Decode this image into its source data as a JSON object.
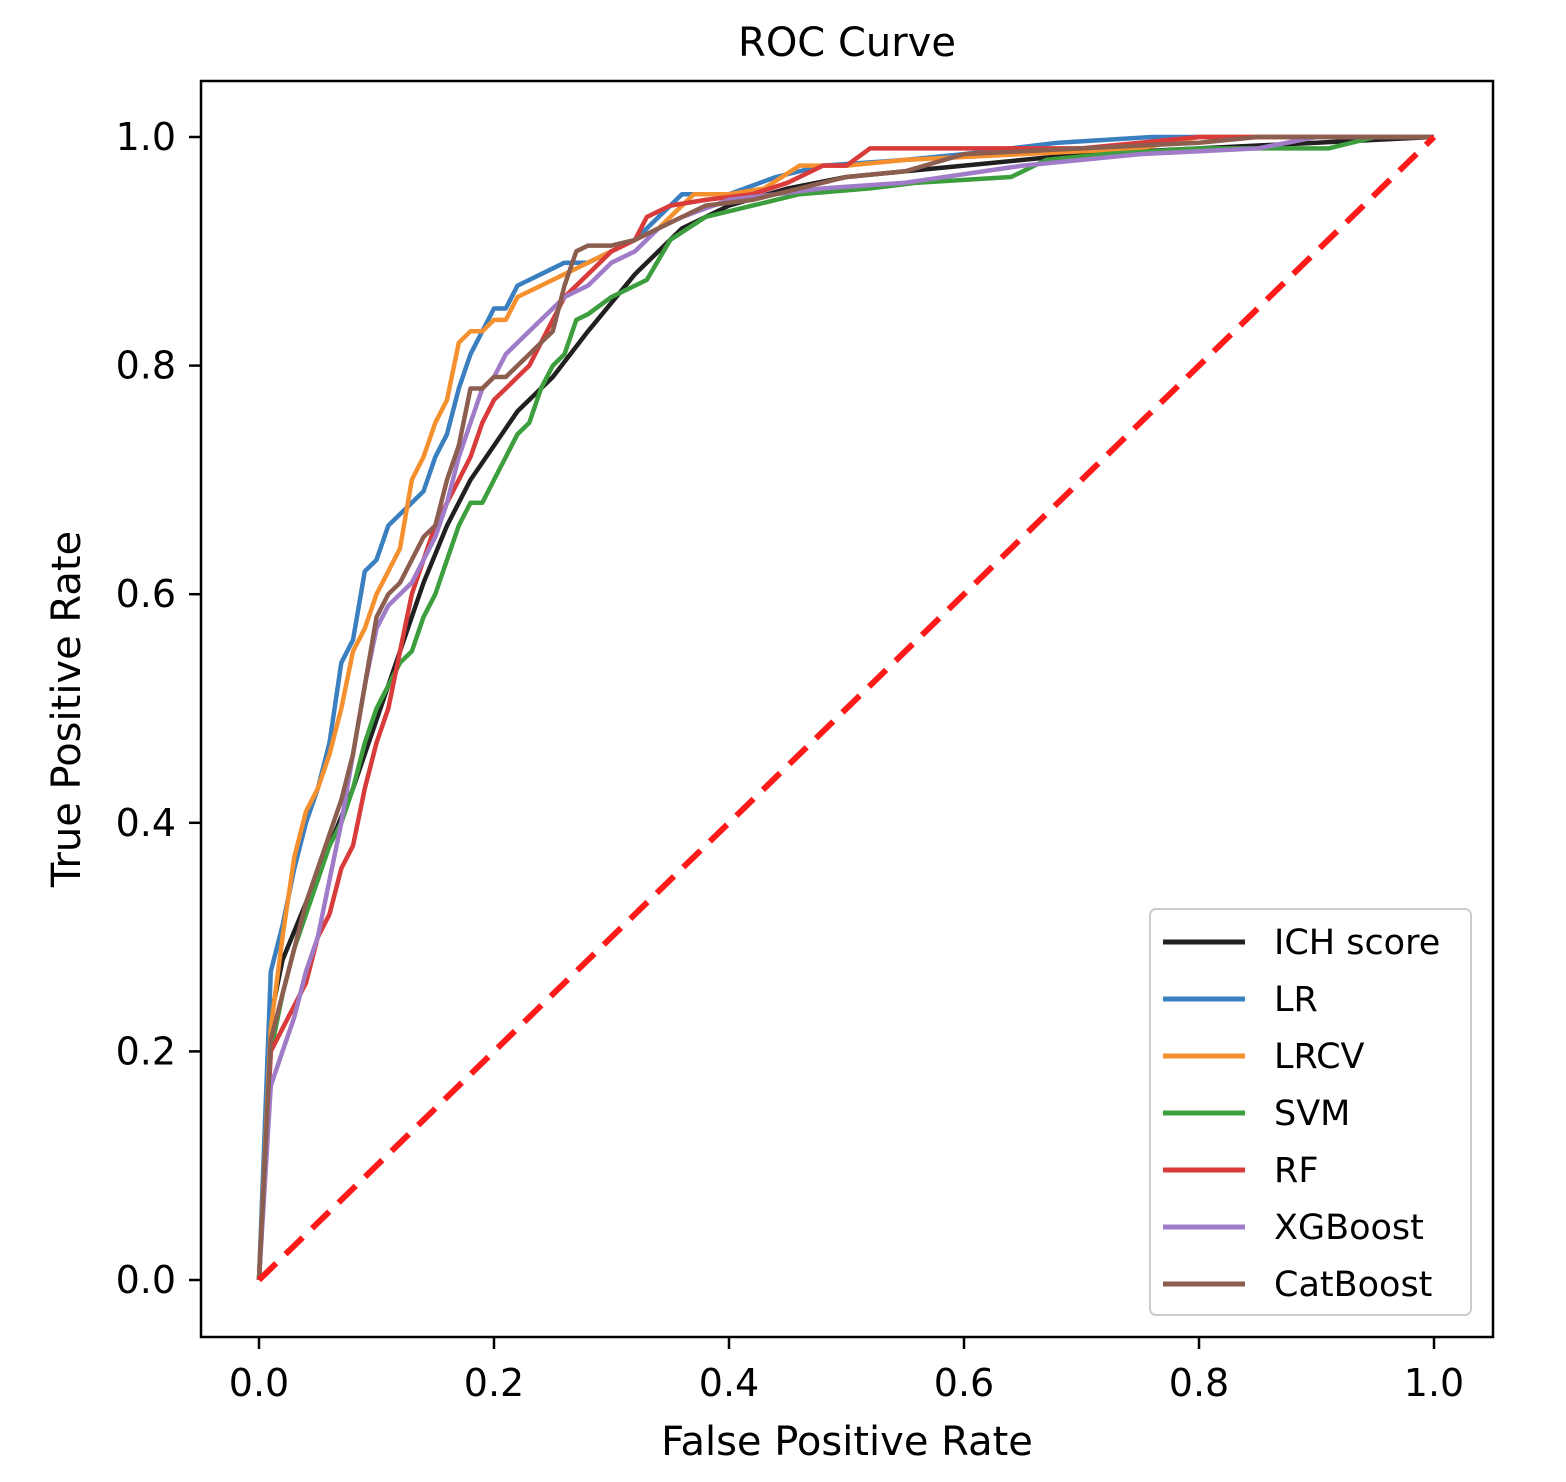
{
  "chart_data": {
    "type": "line",
    "title": "ROC Curve",
    "xlabel": "False Positive Rate",
    "ylabel": "True Positive Rate",
    "xlim": [
      -0.05,
      1.05
    ],
    "ylim": [
      -0.05,
      1.05
    ],
    "xticks": [
      "0.0",
      "0.2",
      "0.4",
      "0.6",
      "0.8",
      "1.0"
    ],
    "yticks": [
      "0.0",
      "0.2",
      "0.4",
      "0.6",
      "0.8",
      "1.0"
    ],
    "grid": false,
    "legend_position": "lower-right",
    "series": [
      {
        "name": "ICH score",
        "color": "#202020",
        "points": [
          [
            0,
            0
          ],
          [
            0.01,
            0.23
          ],
          [
            0.02,
            0.28
          ],
          [
            0.04,
            0.33
          ],
          [
            0.06,
            0.38
          ],
          [
            0.08,
            0.43
          ],
          [
            0.1,
            0.49
          ],
          [
            0.12,
            0.55
          ],
          [
            0.14,
            0.61
          ],
          [
            0.16,
            0.66
          ],
          [
            0.18,
            0.7
          ],
          [
            0.2,
            0.73
          ],
          [
            0.22,
            0.76
          ],
          [
            0.25,
            0.79
          ],
          [
            0.28,
            0.83
          ],
          [
            0.32,
            0.88
          ],
          [
            0.36,
            0.92
          ],
          [
            0.4,
            0.94
          ],
          [
            0.45,
            0.955
          ],
          [
            0.5,
            0.965
          ],
          [
            0.55,
            0.97
          ],
          [
            0.6,
            0.975
          ],
          [
            0.65,
            0.98
          ],
          [
            0.7,
            0.985
          ],
          [
            0.8,
            0.99
          ],
          [
            0.9,
            0.995
          ],
          [
            1.0,
            1.0
          ]
        ]
      },
      {
        "name": "LR",
        "color": "#3a7fbf",
        "points": [
          [
            0,
            0
          ],
          [
            0.01,
            0.27
          ],
          [
            0.02,
            0.31
          ],
          [
            0.03,
            0.36
          ],
          [
            0.04,
            0.4
          ],
          [
            0.05,
            0.43
          ],
          [
            0.06,
            0.47
          ],
          [
            0.07,
            0.54
          ],
          [
            0.08,
            0.56
          ],
          [
            0.09,
            0.62
          ],
          [
            0.1,
            0.63
          ],
          [
            0.11,
            0.66
          ],
          [
            0.12,
            0.67
          ],
          [
            0.13,
            0.68
          ],
          [
            0.14,
            0.69
          ],
          [
            0.15,
            0.72
          ],
          [
            0.16,
            0.74
          ],
          [
            0.17,
            0.78
          ],
          [
            0.18,
            0.81
          ],
          [
            0.19,
            0.83
          ],
          [
            0.2,
            0.85
          ],
          [
            0.21,
            0.85
          ],
          [
            0.22,
            0.87
          ],
          [
            0.24,
            0.88
          ],
          [
            0.26,
            0.89
          ],
          [
            0.28,
            0.89
          ],
          [
            0.3,
            0.9
          ],
          [
            0.32,
            0.91
          ],
          [
            0.34,
            0.93
          ],
          [
            0.36,
            0.95
          ],
          [
            0.4,
            0.95
          ],
          [
            0.44,
            0.965
          ],
          [
            0.48,
            0.975
          ],
          [
            0.55,
            0.98
          ],
          [
            0.6,
            0.985
          ],
          [
            0.68,
            0.995
          ],
          [
            0.76,
            1.0
          ],
          [
            1.0,
            1.0
          ]
        ]
      },
      {
        "name": "LRCV",
        "color": "#f5902f",
        "points": [
          [
            0,
            0
          ],
          [
            0.01,
            0.22
          ],
          [
            0.02,
            0.3
          ],
          [
            0.03,
            0.37
          ],
          [
            0.04,
            0.41
          ],
          [
            0.05,
            0.43
          ],
          [
            0.06,
            0.46
          ],
          [
            0.07,
            0.5
          ],
          [
            0.08,
            0.55
          ],
          [
            0.09,
            0.57
          ],
          [
            0.1,
            0.6
          ],
          [
            0.11,
            0.62
          ],
          [
            0.12,
            0.64
          ],
          [
            0.13,
            0.7
          ],
          [
            0.14,
            0.72
          ],
          [
            0.15,
            0.75
          ],
          [
            0.16,
            0.77
          ],
          [
            0.17,
            0.82
          ],
          [
            0.18,
            0.83
          ],
          [
            0.19,
            0.83
          ],
          [
            0.2,
            0.84
          ],
          [
            0.21,
            0.84
          ],
          [
            0.22,
            0.86
          ],
          [
            0.24,
            0.87
          ],
          [
            0.26,
            0.88
          ],
          [
            0.28,
            0.89
          ],
          [
            0.3,
            0.9
          ],
          [
            0.32,
            0.91
          ],
          [
            0.34,
            0.92
          ],
          [
            0.37,
            0.95
          ],
          [
            0.4,
            0.95
          ],
          [
            0.43,
            0.955
          ],
          [
            0.46,
            0.975
          ],
          [
            0.5,
            0.975
          ],
          [
            0.55,
            0.98
          ],
          [
            0.65,
            0.985
          ],
          [
            0.75,
            0.99
          ],
          [
            0.8,
            1.0
          ],
          [
            1.0,
            1.0
          ]
        ]
      },
      {
        "name": "SVM",
        "color": "#3d9e3d",
        "points": [
          [
            0,
            0
          ],
          [
            0.01,
            0.2
          ],
          [
            0.02,
            0.25
          ],
          [
            0.03,
            0.29
          ],
          [
            0.04,
            0.32
          ],
          [
            0.05,
            0.35
          ],
          [
            0.06,
            0.38
          ],
          [
            0.07,
            0.4
          ],
          [
            0.08,
            0.43
          ],
          [
            0.09,
            0.47
          ],
          [
            0.1,
            0.5
          ],
          [
            0.11,
            0.52
          ],
          [
            0.12,
            0.54
          ],
          [
            0.13,
            0.55
          ],
          [
            0.14,
            0.58
          ],
          [
            0.15,
            0.6
          ],
          [
            0.16,
            0.63
          ],
          [
            0.17,
            0.66
          ],
          [
            0.18,
            0.68
          ],
          [
            0.19,
            0.68
          ],
          [
            0.2,
            0.7
          ],
          [
            0.21,
            0.72
          ],
          [
            0.22,
            0.74
          ],
          [
            0.23,
            0.75
          ],
          [
            0.24,
            0.78
          ],
          [
            0.25,
            0.8
          ],
          [
            0.26,
            0.81
          ],
          [
            0.27,
            0.84
          ],
          [
            0.28,
            0.845
          ],
          [
            0.3,
            0.86
          ],
          [
            0.32,
            0.87
          ],
          [
            0.33,
            0.875
          ],
          [
            0.35,
            0.91
          ],
          [
            0.38,
            0.93
          ],
          [
            0.42,
            0.94
          ],
          [
            0.46,
            0.95
          ],
          [
            0.52,
            0.955
          ],
          [
            0.56,
            0.96
          ],
          [
            0.64,
            0.965
          ],
          [
            0.67,
            0.98
          ],
          [
            0.72,
            0.985
          ],
          [
            0.8,
            0.99
          ],
          [
            0.91,
            0.99
          ],
          [
            0.95,
            1.0
          ],
          [
            1.0,
            1.0
          ]
        ]
      },
      {
        "name": "RF",
        "color": "#d93a3a",
        "points": [
          [
            0,
            0
          ],
          [
            0.01,
            0.2
          ],
          [
            0.02,
            0.22
          ],
          [
            0.03,
            0.24
          ],
          [
            0.04,
            0.26
          ],
          [
            0.05,
            0.3
          ],
          [
            0.06,
            0.32
          ],
          [
            0.07,
            0.36
          ],
          [
            0.08,
            0.38
          ],
          [
            0.09,
            0.43
          ],
          [
            0.1,
            0.47
          ],
          [
            0.11,
            0.5
          ],
          [
            0.12,
            0.55
          ],
          [
            0.13,
            0.6
          ],
          [
            0.14,
            0.63
          ],
          [
            0.15,
            0.66
          ],
          [
            0.16,
            0.68
          ],
          [
            0.17,
            0.7
          ],
          [
            0.18,
            0.72
          ],
          [
            0.19,
            0.75
          ],
          [
            0.2,
            0.77
          ],
          [
            0.21,
            0.78
          ],
          [
            0.22,
            0.79
          ],
          [
            0.23,
            0.8
          ],
          [
            0.24,
            0.82
          ],
          [
            0.25,
            0.84
          ],
          [
            0.26,
            0.86
          ],
          [
            0.28,
            0.88
          ],
          [
            0.3,
            0.9
          ],
          [
            0.32,
            0.91
          ],
          [
            0.33,
            0.93
          ],
          [
            0.35,
            0.94
          ],
          [
            0.38,
            0.945
          ],
          [
            0.42,
            0.95
          ],
          [
            0.45,
            0.96
          ],
          [
            0.48,
            0.975
          ],
          [
            0.5,
            0.975
          ],
          [
            0.52,
            0.99
          ],
          [
            0.6,
            0.99
          ],
          [
            0.7,
            0.99
          ],
          [
            0.8,
            1.0
          ],
          [
            1.0,
            1.0
          ]
        ]
      },
      {
        "name": "XGBoost",
        "color": "#a07cc8",
        "points": [
          [
            0,
            0
          ],
          [
            0.01,
            0.17
          ],
          [
            0.02,
            0.2
          ],
          [
            0.03,
            0.23
          ],
          [
            0.04,
            0.27
          ],
          [
            0.05,
            0.3
          ],
          [
            0.06,
            0.35
          ],
          [
            0.07,
            0.4
          ],
          [
            0.08,
            0.46
          ],
          [
            0.09,
            0.52
          ],
          [
            0.1,
            0.57
          ],
          [
            0.11,
            0.59
          ],
          [
            0.12,
            0.6
          ],
          [
            0.13,
            0.61
          ],
          [
            0.14,
            0.63
          ],
          [
            0.15,
            0.65
          ],
          [
            0.16,
            0.68
          ],
          [
            0.17,
            0.72
          ],
          [
            0.18,
            0.75
          ],
          [
            0.19,
            0.78
          ],
          [
            0.2,
            0.79
          ],
          [
            0.21,
            0.81
          ],
          [
            0.22,
            0.82
          ],
          [
            0.23,
            0.83
          ],
          [
            0.24,
            0.84
          ],
          [
            0.25,
            0.85
          ],
          [
            0.26,
            0.86
          ],
          [
            0.28,
            0.87
          ],
          [
            0.3,
            0.89
          ],
          [
            0.32,
            0.9
          ],
          [
            0.34,
            0.92
          ],
          [
            0.36,
            0.93
          ],
          [
            0.4,
            0.945
          ],
          [
            0.44,
            0.95
          ],
          [
            0.48,
            0.955
          ],
          [
            0.55,
            0.96
          ],
          [
            0.65,
            0.975
          ],
          [
            0.75,
            0.985
          ],
          [
            0.85,
            0.99
          ],
          [
            0.9,
            1.0
          ],
          [
            1.0,
            1.0
          ]
        ]
      },
      {
        "name": "CatBoost",
        "color": "#8c5e50",
        "points": [
          [
            0,
            0
          ],
          [
            0.01,
            0.21
          ],
          [
            0.02,
            0.25
          ],
          [
            0.03,
            0.29
          ],
          [
            0.04,
            0.33
          ],
          [
            0.05,
            0.36
          ],
          [
            0.06,
            0.39
          ],
          [
            0.07,
            0.42
          ],
          [
            0.08,
            0.46
          ],
          [
            0.09,
            0.52
          ],
          [
            0.1,
            0.58
          ],
          [
            0.11,
            0.6
          ],
          [
            0.12,
            0.61
          ],
          [
            0.13,
            0.63
          ],
          [
            0.14,
            0.65
          ],
          [
            0.15,
            0.66
          ],
          [
            0.16,
            0.7
          ],
          [
            0.17,
            0.73
          ],
          [
            0.18,
            0.78
          ],
          [
            0.19,
            0.78
          ],
          [
            0.2,
            0.79
          ],
          [
            0.21,
            0.79
          ],
          [
            0.22,
            0.8
          ],
          [
            0.23,
            0.81
          ],
          [
            0.24,
            0.82
          ],
          [
            0.25,
            0.83
          ],
          [
            0.26,
            0.87
          ],
          [
            0.27,
            0.9
          ],
          [
            0.28,
            0.905
          ],
          [
            0.3,
            0.905
          ],
          [
            0.32,
            0.91
          ],
          [
            0.34,
            0.92
          ],
          [
            0.38,
            0.94
          ],
          [
            0.42,
            0.945
          ],
          [
            0.46,
            0.955
          ],
          [
            0.5,
            0.965
          ],
          [
            0.55,
            0.97
          ],
          [
            0.6,
            0.985
          ],
          [
            0.7,
            0.99
          ],
          [
            0.8,
            0.995
          ],
          [
            0.85,
            1.0
          ],
          [
            1.0,
            1.0
          ]
        ]
      }
    ],
    "reference_line": {
      "color": "#ff1a1a",
      "style": "dashed",
      "points": [
        [
          0,
          0
        ],
        [
          1,
          1
        ]
      ]
    }
  }
}
